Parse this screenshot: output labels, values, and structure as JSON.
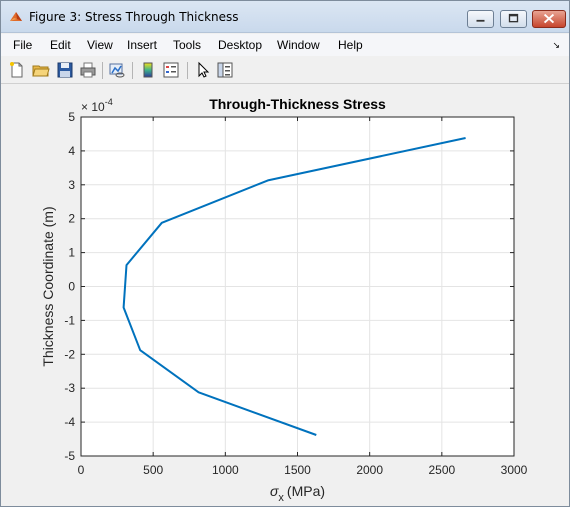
{
  "window": {
    "title": "Figure 3: Stress Through Thickness"
  },
  "menu": {
    "items": [
      "File",
      "Edit",
      "View",
      "Insert",
      "Tools",
      "Desktop",
      "Window",
      "Help"
    ]
  },
  "toolbar": {
    "buttons": [
      "new-figure-icon",
      "open-file-icon",
      "save-icon",
      "print-icon",
      "link-plot-icon",
      "colorbar-icon",
      "legend-icon",
      "pointer-icon",
      "property-editor-icon"
    ]
  },
  "chart_data": {
    "type": "line",
    "title": "Through-Thickness Stress",
    "xlabel": "σ",
    "xlabel_sub": "x",
    "xlabel_unit": "(MPa)",
    "ylabel": "Thickness Coordinate (m)",
    "y_exponent_label": "× 10",
    "y_exponent_power": "-4",
    "xlim": [
      0,
      3000
    ],
    "ylim": [
      -5,
      5
    ],
    "xticks": [
      0,
      500,
      1000,
      1500,
      2000,
      2500,
      3000
    ],
    "yticks": [
      -5,
      -4,
      -3,
      -2,
      -1,
      0,
      1,
      2,
      3,
      4,
      5
    ],
    "xtick_labels": [
      "0",
      "500",
      "1000",
      "1500",
      "2000",
      "2500",
      "3000"
    ],
    "ytick_labels": [
      "-5",
      "-4",
      "-3",
      "-2",
      "-1",
      "0",
      "1",
      "2",
      "3",
      "4",
      "5"
    ],
    "grid": true,
    "line_color": "#0072bd",
    "series": [
      {
        "x": [
          1630,
          815,
          410,
          295,
          315,
          560,
          1295,
          2665
        ],
        "y": [
          -4.38,
          -3.12,
          -1.88,
          -0.62,
          0.63,
          1.88,
          3.13,
          4.38
        ]
      }
    ]
  }
}
